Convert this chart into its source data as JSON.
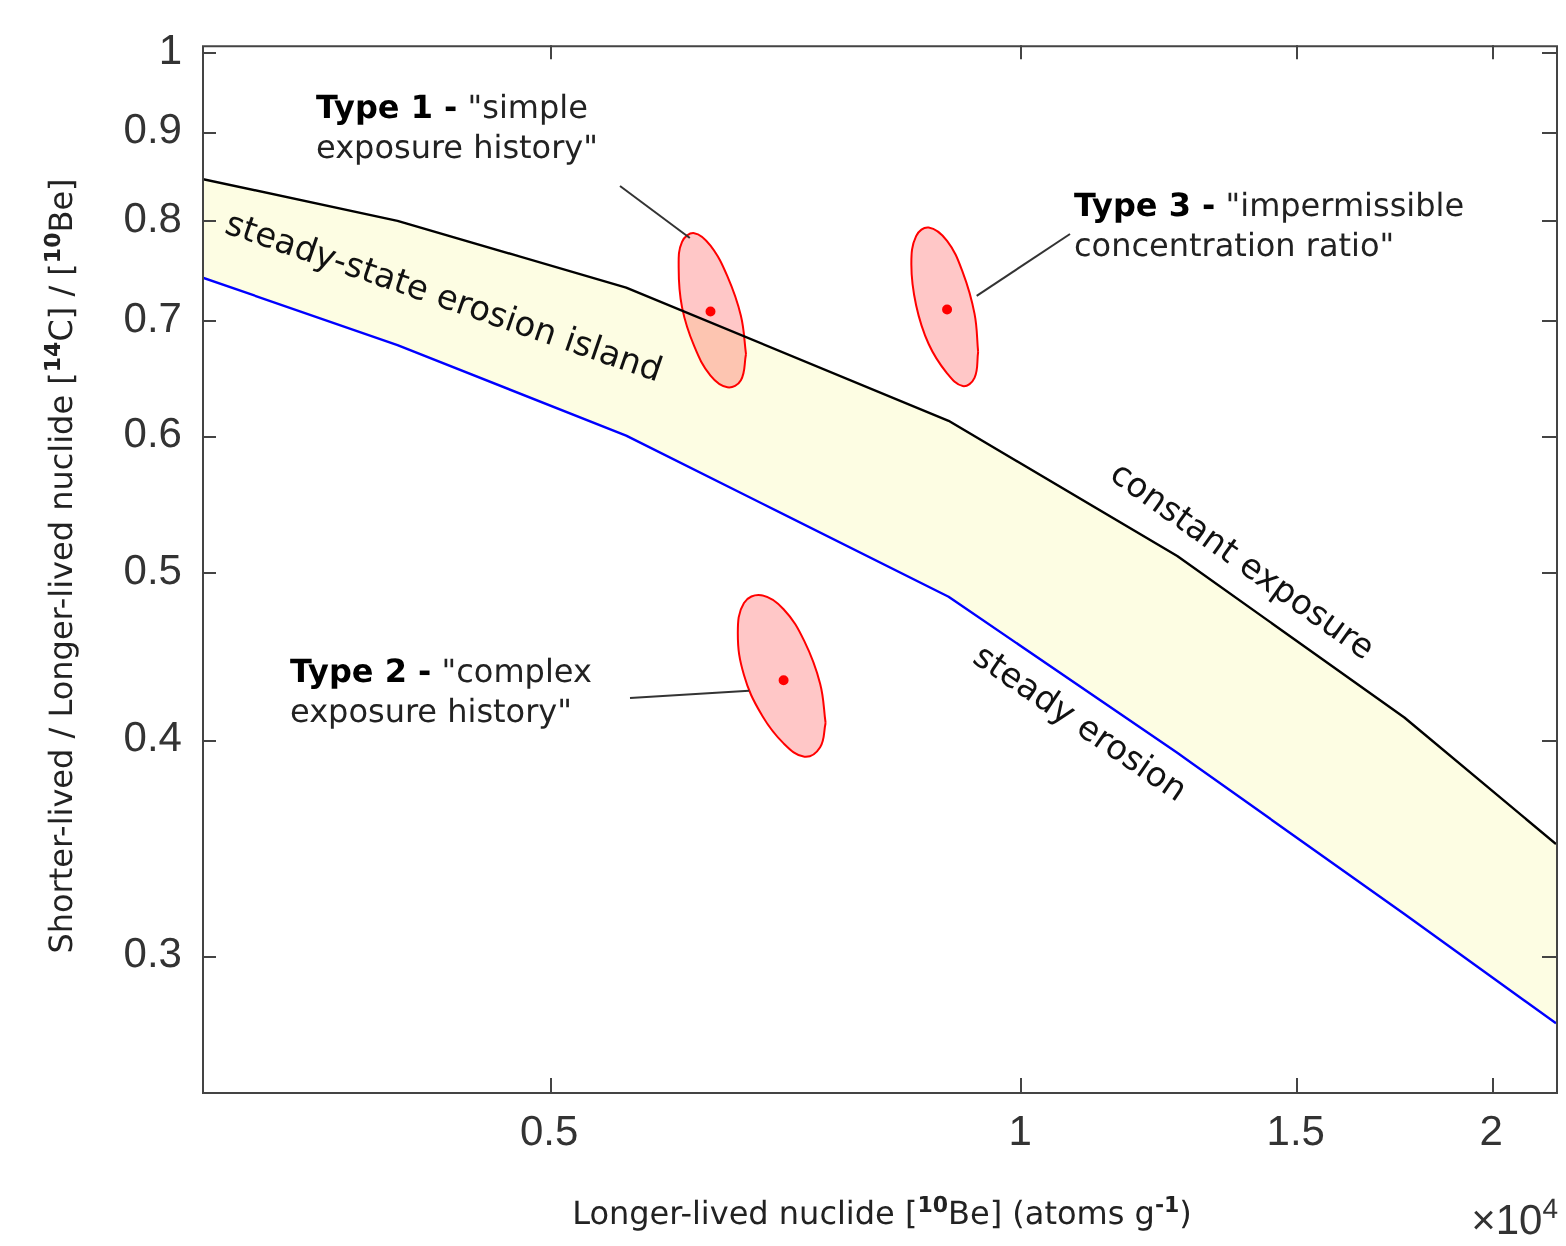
{
  "chart_data": {
    "type": "line",
    "xlabel": "Longer-lived nuclide [$^{10}$Be] (atoms g$^{-1}$)",
    "ylabel": "Shorter-lived / Longer-lived nuclide  [$^{14}$C] / [$^{10}$Be]",
    "x": [
      0.3,
      0.4,
      0.56,
      0.9,
      1.26,
      1.76,
      2.2
    ],
    "series": [
      {
        "type": "line",
        "name": "constant exposure",
        "color": "#000000",
        "values": [
          0.845,
          0.799,
          0.731,
          0.612,
          0.511,
          0.412,
          0.348
        ]
      },
      {
        "type": "line",
        "name": "steady erosion",
        "color": "#0000ff",
        "values": [
          0.741,
          0.677,
          0.6,
          0.484,
          0.393,
          0.317,
          0.274
        ],
        "lower": [
          0.741,
          0.677,
          0.6,
          0.484,
          0.393,
          0.317,
          0.274
        ],
        "upper": [
          0.845,
          0.799,
          0.731,
          0.612,
          0.511,
          0.412,
          0.348
        ]
      },
      {
        "type": "area",
        "color": "#ff0000",
        "x": [
          0.668,
          0.663,
          0.65,
          0.634,
          0.619,
          0.608,
          0.605,
          0.608,
          0.619,
          0.634,
          0.65,
          0.663
        ],
        "values": [
          0.669,
          0.646,
          0.64,
          0.65,
          0.676,
          0.712,
          0.75,
          0.777,
          0.786,
          0.773,
          0.742,
          0.704
        ]
      },
      {
        "type": "area",
        "color": "#ff0000",
        "x": [
          0.94,
          0.935,
          0.919,
          0.898,
          0.874,
          0.858,
          0.852,
          0.858,
          0.874,
          0.898,
          0.919,
          0.935
        ],
        "values": [
          0.671,
          0.648,
          0.641,
          0.652,
          0.678,
          0.714,
          0.754,
          0.783,
          0.792,
          0.778,
          0.746,
          0.706
        ]
      },
      {
        "type": "area",
        "color": "#ff0000",
        "x": [
          0.751,
          0.745,
          0.728,
          0.706,
          0.683,
          0.666,
          0.66,
          0.666,
          0.683,
          0.706,
          0.728,
          0.745
        ],
        "values": [
          0.409,
          0.396,
          0.391,
          0.398,
          0.414,
          0.436,
          0.461,
          0.48,
          0.485,
          0.476,
          0.456,
          0.431
        ]
      },
      {
        "type": "scatter",
        "color": "#ff0000",
        "x": [
          0.634,
          0.898,
          0.706
        ],
        "values": [
          0.708,
          0.71,
          0.433
        ]
      }
    ],
    "annotations": [
      {
        "text": "Type 1 - \"simple exposure history\"",
        "x": 0.615,
        "y": 0.781
      },
      {
        "text": "Type 3 - \"impermissible concentration ratio\"",
        "x": 0.938,
        "y": 0.723
      },
      {
        "text": "Type 2 - \"complex exposure history\"",
        "x": 0.671,
        "y": 0.427
      },
      "steady-state erosion island",
      "×10$^{4}$"
    ],
    "log": "xy",
    "xlim": [
      0.3,
      2.2
    ],
    "xticks": [
      0.5,
      1,
      1.5,
      2
    ],
    "ylim": [
      0.25,
      1.01
    ],
    "yticks": [
      0.3,
      0.4,
      0.5,
      0.6,
      0.7,
      0.8,
      0.9,
      1
    ],
    "grid": false,
    "legend": false,
    "line_style": "solid"
  }
}
